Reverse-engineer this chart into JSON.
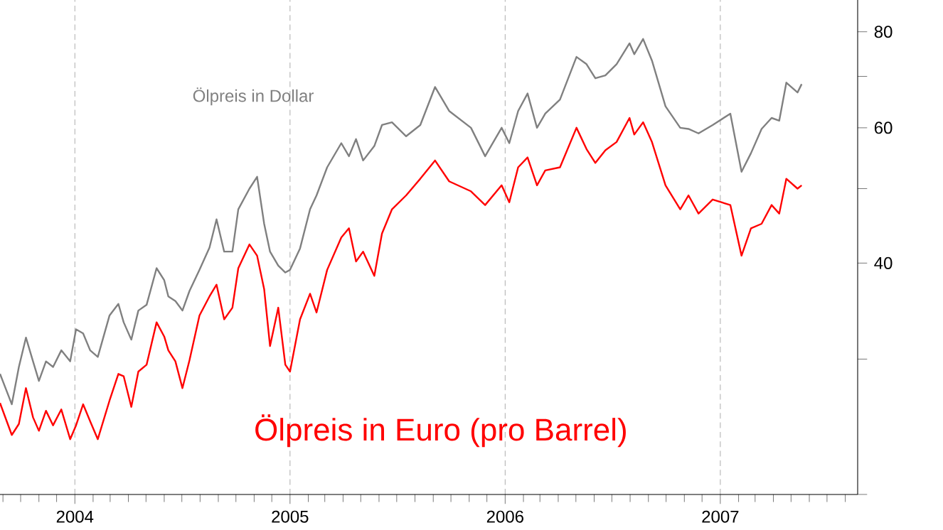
{
  "chart_data": {
    "type": "line",
    "log": "y",
    "grid": "x",
    "x": [
      "2003-08-27",
      "2003-09-16",
      "2003-09-28",
      "2003-10-10",
      "2003-10-22",
      "2003-11-01",
      "2003-11-13",
      "2003-11-25",
      "2003-12-09",
      "2003-12-24",
      "2004-01-03",
      "2004-01-15",
      "2004-01-27",
      "2004-02-09",
      "2004-02-29",
      "2004-03-15",
      "2004-03-24",
      "2004-04-06",
      "2004-04-18",
      "2004-05-02",
      "2004-05-19",
      "2004-06-01",
      "2004-06-08",
      "2004-06-20",
      "2004-07-02",
      "2004-07-14",
      "2004-07-31",
      "2004-08-17",
      "2004-08-29",
      "2004-09-11",
      "2004-09-25",
      "2004-10-05",
      "2004-10-24",
      "2004-11-06",
      "2004-11-18",
      "2004-11-28",
      "2004-12-12",
      "2004-12-24",
      "2005-01-01",
      "2005-01-18",
      "2005-02-04",
      "2005-02-15",
      "2005-03-05",
      "2005-03-29",
      "2005-04-11",
      "2005-04-23",
      "2005-05-05",
      "2005-05-24",
      "2005-06-06",
      "2005-06-23",
      "2005-07-17",
      "2005-08-10",
      "2005-09-04",
      "2005-09-28",
      "2005-11-04",
      "2005-11-28",
      "2005-12-26",
      "2006-01-08",
      "2006-01-23",
      "2006-02-08",
      "2006-02-24",
      "2006-03-10",
      "2006-04-04",
      "2006-05-02",
      "2006-05-19",
      "2006-06-03",
      "2006-06-20",
      "2006-07-09",
      "2006-07-31",
      "2006-08-08",
      "2006-08-23",
      "2006-09-07",
      "2006-09-30",
      "2006-10-25",
      "2006-11-08",
      "2006-11-25",
      "2006-12-19",
      "2007-01-18",
      "2007-02-06",
      "2007-02-22",
      "2007-03-12",
      "2007-03-29",
      "2007-04-11",
      "2007-04-23",
      "2007-05-12",
      "2007-05-19"
    ],
    "series": [
      {
        "name": "Ölpreis in Dollar",
        "color": "#808080",
        "values": [
          28.7,
          26.2,
          29.3,
          32.0,
          29.8,
          28.1,
          29.8,
          29.3,
          30.8,
          29.8,
          32.8,
          32.4,
          30.8,
          30.2,
          34.2,
          35.4,
          33.5,
          31.8,
          34.7,
          35.3,
          39.4,
          38.0,
          36.2,
          35.7,
          34.7,
          36.8,
          39.2,
          41.9,
          45.6,
          41.4,
          41.4,
          47.0,
          50.0,
          51.8,
          45.0,
          41.4,
          39.7,
          38.9,
          39.2,
          41.8,
          47.0,
          49.0,
          53.3,
          57.3,
          55.1,
          58.0,
          54.4,
          56.8,
          60.5,
          61.0,
          58.5,
          60.5,
          67.8,
          63.1,
          60.0,
          55.1,
          60.0,
          57.3,
          63.1,
          66.5,
          60.0,
          62.6,
          65.3,
          74.2,
          72.6,
          69.6,
          70.2,
          72.6,
          77.3,
          74.8,
          78.3,
          73.4,
          64.0,
          60.0,
          59.8,
          59.0,
          60.5,
          62.6,
          52.6,
          55.6,
          59.8,
          61.8,
          61.3,
          68.7,
          66.7,
          68.4
        ]
      },
      {
        "name": "Ölpreis in Euro (pro Barrel)",
        "color": "#ff0000",
        "values": [
          26.3,
          23.9,
          24.7,
          27.5,
          25.2,
          24.2,
          25.7,
          24.6,
          25.8,
          23.6,
          24.6,
          26.2,
          24.9,
          23.6,
          26.5,
          28.7,
          28.5,
          26.0,
          28.9,
          29.5,
          33.5,
          32.1,
          30.8,
          29.8,
          27.5,
          29.9,
          34.2,
          36.2,
          37.5,
          33.8,
          35.0,
          39.4,
          42.3,
          40.9,
          37.0,
          31.2,
          35.0,
          29.5,
          28.9,
          33.8,
          36.5,
          34.5,
          39.2,
          43.2,
          44.4,
          40.2,
          41.4,
          38.5,
          43.7,
          47.0,
          49.0,
          51.5,
          54.4,
          51.1,
          49.6,
          47.6,
          50.5,
          48.0,
          53.3,
          54.9,
          50.5,
          52.8,
          53.3,
          60.0,
          56.3,
          54.0,
          56.1,
          57.5,
          61.8,
          58.8,
          61.0,
          57.5,
          50.5,
          47.0,
          49.0,
          46.4,
          48.4,
          47.6,
          40.9,
          44.4,
          45.0,
          47.6,
          46.4,
          51.5,
          50.0,
          50.5
        ]
      }
    ],
    "xlim": [
      "2003-08-27",
      "2007-08-22"
    ],
    "xticks": [
      {
        "value": "2003-09-01",
        "label": null
      },
      {
        "value": "2003-10-01",
        "label": null
      },
      {
        "value": "2003-11-01",
        "label": null
      },
      {
        "value": "2003-12-01",
        "label": null
      },
      {
        "value": "2004-01-01",
        "label": "2004"
      },
      {
        "value": "2004-02-01",
        "label": null
      },
      {
        "value": "2004-03-01",
        "label": null
      },
      {
        "value": "2004-04-01",
        "label": null
      },
      {
        "value": "2004-05-01",
        "label": null
      },
      {
        "value": "2004-06-01",
        "label": null
      },
      {
        "value": "2004-07-01",
        "label": null
      },
      {
        "value": "2004-08-01",
        "label": null
      },
      {
        "value": "2004-09-01",
        "label": null
      },
      {
        "value": "2004-10-01",
        "label": null
      },
      {
        "value": "2004-11-01",
        "label": null
      },
      {
        "value": "2004-12-01",
        "label": null
      },
      {
        "value": "2005-01-01",
        "label": "2005"
      },
      {
        "value": "2005-02-01",
        "label": null
      },
      {
        "value": "2005-03-01",
        "label": null
      },
      {
        "value": "2005-04-01",
        "label": null
      },
      {
        "value": "2005-05-01",
        "label": null
      },
      {
        "value": "2005-06-01",
        "label": null
      },
      {
        "value": "2005-07-01",
        "label": null
      },
      {
        "value": "2005-08-01",
        "label": null
      },
      {
        "value": "2005-09-01",
        "label": null
      },
      {
        "value": "2005-10-01",
        "label": null
      },
      {
        "value": "2005-11-01",
        "label": null
      },
      {
        "value": "2005-12-01",
        "label": null
      },
      {
        "value": "2006-01-01",
        "label": "2006"
      },
      {
        "value": "2006-02-01",
        "label": null
      },
      {
        "value": "2006-03-01",
        "label": null
      },
      {
        "value": "2006-04-01",
        "label": null
      },
      {
        "value": "2006-05-01",
        "label": null
      },
      {
        "value": "2006-06-01",
        "label": null
      },
      {
        "value": "2006-07-01",
        "label": null
      },
      {
        "value": "2006-08-01",
        "label": null
      },
      {
        "value": "2006-09-01",
        "label": null
      },
      {
        "value": "2006-10-01",
        "label": null
      },
      {
        "value": "2006-11-01",
        "label": null
      },
      {
        "value": "2006-12-01",
        "label": null
      },
      {
        "value": "2007-01-01",
        "label": "2007"
      },
      {
        "value": "2007-02-01",
        "label": null
      },
      {
        "value": "2007-03-01",
        "label": null
      },
      {
        "value": "2007-04-01",
        "label": null
      },
      {
        "value": "2007-05-01",
        "label": null
      },
      {
        "value": "2007-06-01",
        "label": null
      },
      {
        "value": "2007-07-01",
        "label": null
      },
      {
        "value": "2007-08-01",
        "label": null
      }
    ],
    "ylim": [
      20,
      88
    ],
    "yticks": [
      {
        "value": 20,
        "label": null
      },
      {
        "value": 30,
        "label": null
      },
      40,
      {
        "value": 50,
        "label": null
      },
      60,
      {
        "value": 70,
        "label": null
      },
      80
    ]
  }
}
